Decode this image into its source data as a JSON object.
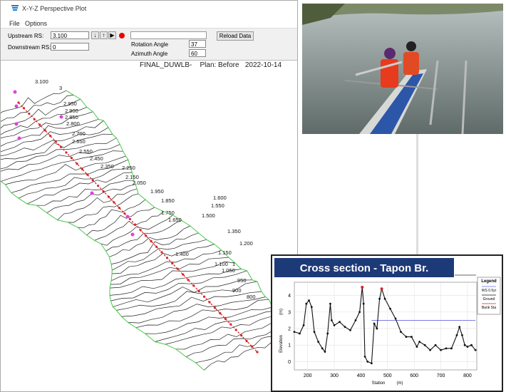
{
  "window": {
    "title": "X-Y-Z Perspective Plot",
    "menu": [
      "File",
      "Options"
    ],
    "upstream_label": "Upstream RS:",
    "upstream_value": "3.100",
    "downstream_label": "Downstream RS:",
    "downstream_value": "0",
    "rotation_label": "Rotation Angle",
    "rotation_value": "37",
    "azimuth_label": "Azimuth Angle",
    "azimuth_value": "60",
    "reload_button": "Reload Data",
    "heading": [
      "FINAL_DUWLB-",
      "Plan: Before",
      "2022-10-14"
    ],
    "river_stations": [
      "3.100",
      "3",
      "2.950",
      "2.900",
      "2.850",
      "2.800",
      "2.700",
      "2.650",
      "2.550",
      "2.450",
      "2.350",
      "2.250",
      "2.150",
      "2.050",
      "1.950",
      "1.850",
      "1.750",
      "1.650",
      "1.600",
      "1.550",
      "1.500",
      "1.350",
      "1.400",
      "1.200",
      "1.150",
      "1.100",
      "1",
      "1.050",
      "950",
      "900",
      "800"
    ]
  },
  "chart_data": {
    "type": "line",
    "title": "Cross section - Tapon Br.",
    "x_label": "Station",
    "x_unit": "(m)",
    "y_label": "Elevation",
    "y_unit": "(m)",
    "legend_title": "Legend",
    "x": [
      150,
      170,
      185,
      195,
      205,
      215,
      225,
      240,
      255,
      265,
      275,
      285,
      290,
      300,
      320,
      340,
      360,
      380,
      395,
      405,
      410,
      415,
      425,
      440,
      450,
      460,
      470,
      478,
      490,
      510,
      530,
      550,
      570,
      590,
      610,
      620,
      640,
      660,
      680,
      700,
      720,
      740,
      760,
      770,
      780,
      790,
      800,
      815,
      830
    ],
    "series": [
      {
        "name": "WS 0.5yr",
        "color": "#6a6ae0",
        "x": [
          440,
          830
        ],
        "values": [
          2.5,
          2.5
        ]
      },
      {
        "name": "Ground",
        "color": "#111111",
        "values": [
          1.8,
          1.7,
          2.2,
          3.5,
          3.7,
          3.3,
          1.8,
          1.2,
          0.8,
          0.6,
          1.7,
          3.5,
          2.5,
          2.2,
          2.4,
          2.1,
          1.9,
          2.5,
          3.0,
          4.5,
          3.5,
          0.3,
          0.0,
          -0.1,
          2.3,
          2.0,
          3.8,
          4.4,
          3.8,
          3.2,
          2.6,
          1.8,
          1.5,
          1.5,
          0.9,
          1.2,
          1.0,
          0.7,
          1.0,
          0.7,
          0.8,
          0.8,
          1.6,
          2.1,
          1.6,
          1.0,
          0.9,
          1.0,
          0.7
        ]
      },
      {
        "name": "Bank Sta",
        "color": "#e02020",
        "x": [
          405,
          478
        ],
        "values": [
          4.5,
          4.4
        ]
      }
    ],
    "xlim": [
      150,
      835
    ],
    "ylim": [
      -0.5,
      4.8
    ],
    "xticks": [
      200,
      300,
      400,
      500,
      600,
      700,
      800
    ],
    "yticks": [
      0,
      1,
      2,
      3,
      4
    ],
    "grid": true
  }
}
